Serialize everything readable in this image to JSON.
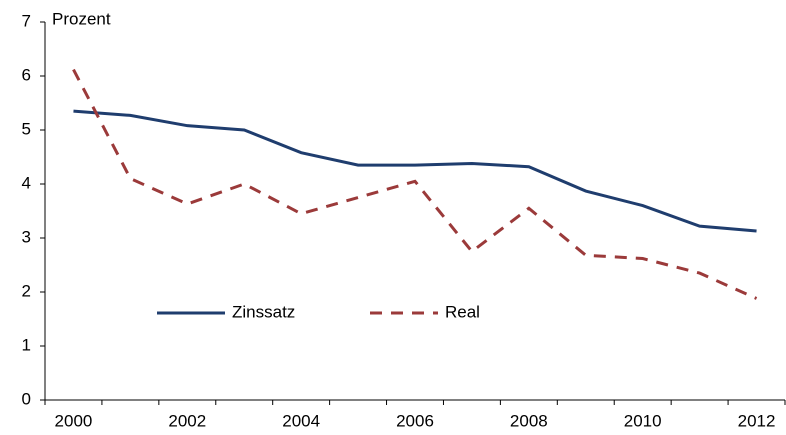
{
  "chart_data": {
    "type": "line",
    "y_label": "Prozent",
    "categories": [
      "2000",
      null,
      "2002",
      null,
      "2004",
      null,
      "2006",
      null,
      "2008",
      null,
      "2010",
      null,
      "2012"
    ],
    "series": [
      {
        "name": "Zinssatz",
        "color": "#1f3d6e",
        "dash": "solid",
        "values": [
          5.35,
          5.27,
          5.08,
          5.0,
          4.58,
          4.35,
          4.35,
          4.38,
          4.32,
          3.87,
          3.6,
          3.22,
          3.13
        ]
      },
      {
        "name": "Real",
        "color": "#9b3a3a",
        "dash": "dashed",
        "values": [
          6.12,
          4.1,
          3.63,
          4.0,
          3.45,
          3.75,
          4.05,
          2.75,
          3.55,
          2.68,
          2.62,
          2.35,
          1.88
        ]
      }
    ],
    "ylim": [
      0,
      7
    ],
    "yticks": [
      0,
      1,
      2,
      3,
      4,
      5,
      6,
      7
    ],
    "grid": false
  }
}
